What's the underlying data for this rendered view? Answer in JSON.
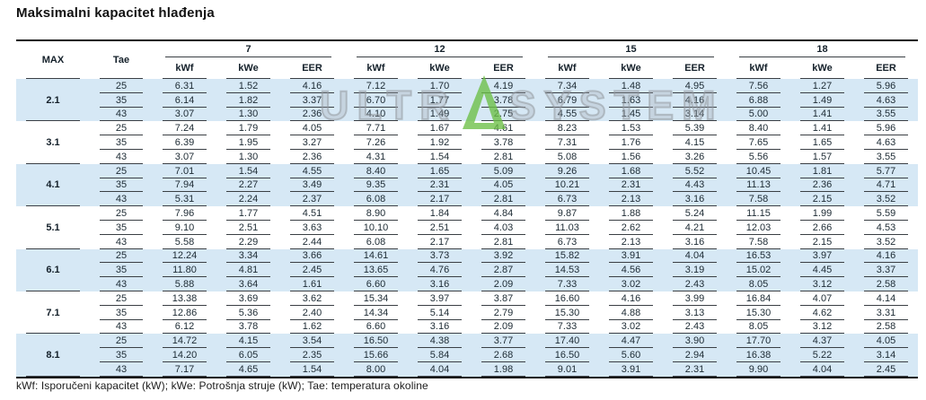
{
  "title": "Maksimalni kapacitet hlađenja",
  "footer": "kWf: Isporučeni kapacitet (kW); kWe: Potrošnja struje (kW); Tae: temperatura okoline",
  "watermark": {
    "text_left": "ULTR",
    "logo": "stylized-green-triangle-A",
    "text_right": "SYSTEM"
  },
  "colors": {
    "band_blue": "#d6e8f5",
    "cell_line": "#3a3f44",
    "thick_border": "#131313",
    "text": "#1c2a33",
    "watermark_gray": "#9aa0a6",
    "watermark_green": "#6cbf45"
  },
  "table": {
    "headers": {
      "max": "MAX",
      "tae": "Tae"
    },
    "groups": [
      "7",
      "12",
      "15",
      "18"
    ],
    "sub_headers": [
      "kWf",
      "kWe",
      "EER"
    ],
    "row_groups": [
      {
        "max": "2.1",
        "banded": true,
        "rows": [
          {
            "tae": "25",
            "values": [
              "6.31",
              "1.52",
              "4.16",
              "7.12",
              "1.70",
              "4.19",
              "7.34",
              "1.48",
              "4.95",
              "7.56",
              "1.27",
              "5.96"
            ]
          },
          {
            "tae": "35",
            "values": [
              "6.14",
              "1.82",
              "3.37",
              "6.70",
              "1.77",
              "3.78",
              "6.79",
              "1.63",
              "4.16",
              "6.88",
              "1.49",
              "4.63"
            ]
          },
          {
            "tae": "43",
            "values": [
              "3.07",
              "1.30",
              "2.36",
              "4.10",
              "1.49",
              "2.75",
              "4.55",
              "1.45",
              "3.14",
              "5.00",
              "1.41",
              "3.55"
            ]
          }
        ]
      },
      {
        "max": "3.1",
        "banded": false,
        "rows": [
          {
            "tae": "25",
            "values": [
              "7.24",
              "1.79",
              "4.05",
              "7.71",
              "1.67",
              "4.61",
              "8.23",
              "1.53",
              "5.39",
              "8.40",
              "1.41",
              "5.96"
            ]
          },
          {
            "tae": "35",
            "values": [
              "6.39",
              "1.95",
              "3.27",
              "7.26",
              "1.92",
              "3.78",
              "7.31",
              "1.76",
              "4.15",
              "7.65",
              "1.65",
              "4.63"
            ]
          },
          {
            "tae": "43",
            "values": [
              "3.07",
              "1.30",
              "2.36",
              "4.31",
              "1.54",
              "2.81",
              "5.08",
              "1.56",
              "3.26",
              "5.56",
              "1.57",
              "3.55"
            ]
          }
        ]
      },
      {
        "max": "4.1",
        "banded": true,
        "rows": [
          {
            "tae": "25",
            "values": [
              "7.01",
              "1.54",
              "4.55",
              "8.40",
              "1.65",
              "5.09",
              "9.26",
              "1.68",
              "5.52",
              "10.45",
              "1.81",
              "5.77"
            ]
          },
          {
            "tae": "35",
            "values": [
              "7.94",
              "2.27",
              "3.49",
              "9.35",
              "2.31",
              "4.05",
              "10.21",
              "2.31",
              "4.43",
              "11.13",
              "2.36",
              "4.71"
            ]
          },
          {
            "tae": "43",
            "values": [
              "5.31",
              "2.24",
              "2.37",
              "6.08",
              "2.17",
              "2.81",
              "6.73",
              "2.13",
              "3.16",
              "7.58",
              "2.15",
              "3.52"
            ]
          }
        ]
      },
      {
        "max": "5.1",
        "banded": false,
        "rows": [
          {
            "tae": "25",
            "values": [
              "7.96",
              "1.77",
              "4.51",
              "8.90",
              "1.84",
              "4.84",
              "9.87",
              "1.88",
              "5.24",
              "11.15",
              "1.99",
              "5.59"
            ]
          },
          {
            "tae": "35",
            "values": [
              "9.10",
              "2.51",
              "3.63",
              "10.10",
              "2.51",
              "4.03",
              "11.03",
              "2.62",
              "4.21",
              "12.03",
              "2.66",
              "4.53"
            ]
          },
          {
            "tae": "43",
            "values": [
              "5.58",
              "2.29",
              "2.44",
              "6.08",
              "2.17",
              "2.81",
              "6.73",
              "2.13",
              "3.16",
              "7.58",
              "2.15",
              "3.52"
            ]
          }
        ]
      },
      {
        "max": "6.1",
        "banded": true,
        "rows": [
          {
            "tae": "25",
            "values": [
              "12.24",
              "3.34",
              "3.66",
              "14.61",
              "3.73",
              "3.92",
              "15.82",
              "3.91",
              "4.04",
              "16.53",
              "3.97",
              "4.16"
            ]
          },
          {
            "tae": "35",
            "values": [
              "11.80",
              "4.81",
              "2.45",
              "13.65",
              "4.76",
              "2.87",
              "14.53",
              "4.56",
              "3.19",
              "15.02",
              "4.45",
              "3.37"
            ]
          },
          {
            "tae": "43",
            "values": [
              "5.88",
              "3.64",
              "1.61",
              "6.60",
              "3.16",
              "2.09",
              "7.33",
              "3.02",
              "2.43",
              "8.05",
              "3.12",
              "2.58"
            ]
          }
        ]
      },
      {
        "max": "7.1",
        "banded": false,
        "rows": [
          {
            "tae": "25",
            "values": [
              "13.38",
              "3.69",
              "3.62",
              "15.34",
              "3.97",
              "3.87",
              "16.60",
              "4.16",
              "3.99",
              "16.84",
              "4.07",
              "4.14"
            ]
          },
          {
            "tae": "35",
            "values": [
              "12.86",
              "5.36",
              "2.40",
              "14.34",
              "5.14",
              "2.79",
              "15.30",
              "4.88",
              "3.13",
              "15.30",
              "4.62",
              "3.31"
            ]
          },
          {
            "tae": "43",
            "values": [
              "6.12",
              "3.78",
              "1.62",
              "6.60",
              "3.16",
              "2.09",
              "7.33",
              "3.02",
              "2.43",
              "8.05",
              "3.12",
              "2.58"
            ]
          }
        ]
      },
      {
        "max": "8.1",
        "banded": true,
        "rows": [
          {
            "tae": "25",
            "values": [
              "14.72",
              "4.15",
              "3.54",
              "16.50",
              "4.38",
              "3.77",
              "17.40",
              "4.47",
              "3.90",
              "17.70",
              "4.37",
              "4.05"
            ]
          },
          {
            "tae": "35",
            "values": [
              "14.20",
              "6.05",
              "2.35",
              "15.66",
              "5.84",
              "2.68",
              "16.50",
              "5.60",
              "2.94",
              "16.38",
              "5.22",
              "3.14"
            ]
          },
          {
            "tae": "43",
            "values": [
              "7.17",
              "4.65",
              "1.54",
              "8.00",
              "4.04",
              "1.98",
              "9.01",
              "3.91",
              "2.31",
              "9.90",
              "4.04",
              "2.45"
            ]
          }
        ]
      }
    ]
  }
}
